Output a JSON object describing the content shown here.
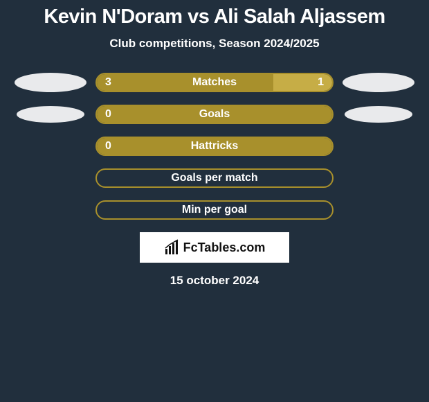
{
  "header": {
    "title": "Kevin N'Doram vs Ali Salah Aljassem",
    "title_color": "#ffffff",
    "title_fontsize": 29,
    "subtitle": "Club competitions, Season 2024/2025",
    "subtitle_color": "#ffffff",
    "subtitle_fontsize": 17
  },
  "colors": {
    "background": "#212f3d",
    "left_fill": "#a8902c",
    "right_fill": "#c6ad46",
    "border": "#a8902c",
    "empty_pill": "#212f3d",
    "label_text": "#ffffff",
    "value_text": "#ffffff",
    "avatar": "#e9eaec"
  },
  "typography": {
    "metric_fontsize": 16,
    "value_fontsize": 16
  },
  "avatars": {
    "row0": {
      "left_w": 104,
      "left_h": 28,
      "right_w": 104,
      "right_h": 28
    },
    "row1": {
      "left_w": 98,
      "left_h": 24,
      "right_w": 98,
      "right_h": 24
    }
  },
  "metrics": [
    {
      "label": "Matches",
      "left_value": "3",
      "right_value": "1",
      "left_pct": 75,
      "right_pct": 25,
      "show_avatars": true
    },
    {
      "label": "Goals",
      "left_value": "0",
      "right_value": "",
      "left_pct": 100,
      "right_pct": 0,
      "show_avatars": true
    },
    {
      "label": "Hattricks",
      "left_value": "0",
      "right_value": "",
      "left_pct": 100,
      "right_pct": 0,
      "show_avatars": false
    },
    {
      "label": "Goals per match",
      "left_value": "",
      "right_value": "",
      "left_pct": 0,
      "right_pct": 0,
      "show_avatars": false
    },
    {
      "label": "Min per goal",
      "left_value": "",
      "right_value": "",
      "left_pct": 0,
      "right_pct": 0,
      "show_avatars": false
    }
  ],
  "brand": {
    "text": "FcTables.com",
    "box_bg": "#ffffff",
    "text_color": "#111111"
  },
  "footer": {
    "date": "15 october 2024",
    "color": "#ffffff",
    "fontsize": 17
  }
}
